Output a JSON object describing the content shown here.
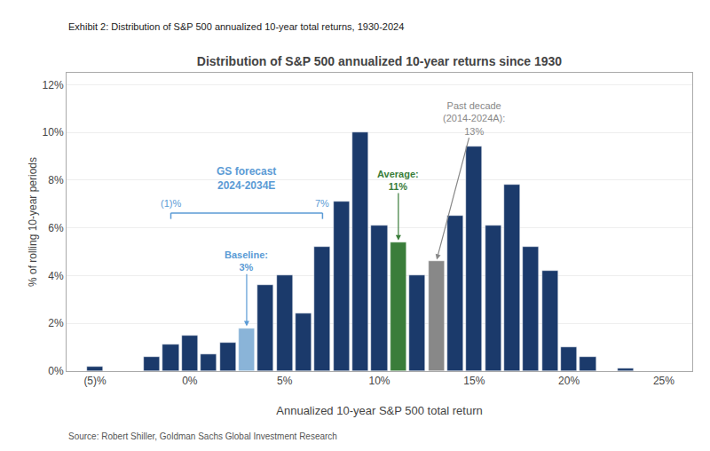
{
  "chart_data": {
    "type": "bar",
    "title": "Distribution of S&P 500 annualized 10-year returns since 1930",
    "subtitle": "Exhibit 2: Distribution of S&P 500 annualized 10-year total returns, 1930-2024",
    "source": "Source: Robert Shiller, Goldman Sachs Global Investment Research",
    "xlabel": "Annualized 10-year S&P 500 total return",
    "ylabel": "% of rolling 10-year periods",
    "x": [
      -5,
      -4,
      -3,
      -2,
      -1,
      0,
      1,
      2,
      3,
      4,
      5,
      6,
      7,
      8,
      9,
      10,
      11,
      12,
      13,
      14,
      15,
      16,
      17,
      18,
      19,
      20,
      21,
      22,
      23,
      24
    ],
    "values": [
      0.2,
      0.0,
      0.0,
      0.6,
      1.1,
      1.5,
      0.7,
      1.2,
      1.8,
      3.6,
      4.0,
      2.4,
      5.2,
      7.1,
      10.0,
      6.1,
      5.4,
      4.0,
      4.6,
      6.5,
      9.4,
      6.1,
      7.8,
      5.2,
      4.2,
      1.0,
      0.6,
      0.0,
      0.1,
      0.0
    ],
    "colors": [
      "#1b3a6b",
      "#1b3a6b",
      "#1b3a6b",
      "#1b3a6b",
      "#1b3a6b",
      "#1b3a6b",
      "#1b3a6b",
      "#1b3a6b",
      "#8ab4d8",
      "#1b3a6b",
      "#1b3a6b",
      "#1b3a6b",
      "#1b3a6b",
      "#1b3a6b",
      "#1b3a6b",
      "#1b3a6b",
      "#3a7d3a",
      "#1b3a6b",
      "#888888",
      "#1b3a6b",
      "#1b3a6b",
      "#1b3a6b",
      "#1b3a6b",
      "#1b3a6b",
      "#1b3a6b",
      "#1b3a6b",
      "#1b3a6b",
      "#1b3a6b",
      "#1b3a6b",
      "#1b3a6b"
    ],
    "xlim": [
      -6.5,
      26.5
    ],
    "ylim": [
      0,
      12.5
    ],
    "xticks": [
      {
        "value": -5,
        "label": "(5)%"
      },
      {
        "value": 0,
        "label": "0%"
      },
      {
        "value": 5,
        "label": "5%"
      },
      {
        "value": 10,
        "label": "10%"
      },
      {
        "value": 15,
        "label": "15%"
      },
      {
        "value": 20,
        "label": "20%"
      },
      {
        "value": 25,
        "label": "25%"
      }
    ],
    "yticks": [
      {
        "value": 0,
        "label": "0%"
      },
      {
        "value": 2,
        "label": "2%"
      },
      {
        "value": 4,
        "label": "4%"
      },
      {
        "value": 6,
        "label": "6%"
      },
      {
        "value": 8,
        "label": "8%"
      },
      {
        "value": 10,
        "label": "10%"
      },
      {
        "value": 12,
        "label": "12%"
      }
    ],
    "grid": true,
    "annotations": [
      {
        "text": "GS forecast\n2024-2034E",
        "x": [
          -1,
          7
        ],
        "labels": [
          "(1)%",
          "7%"
        ],
        "color": "#5b9bd5"
      },
      {
        "text": "Baseline:\n3%",
        "x": 3,
        "color": "#5b9bd5"
      },
      {
        "text": "Average:\n11%",
        "x": 11,
        "color": "#3a7d3a"
      },
      {
        "text": "Past decade\n(2014-2024A):\n13%",
        "x": 13,
        "color": "#888888"
      }
    ]
  }
}
